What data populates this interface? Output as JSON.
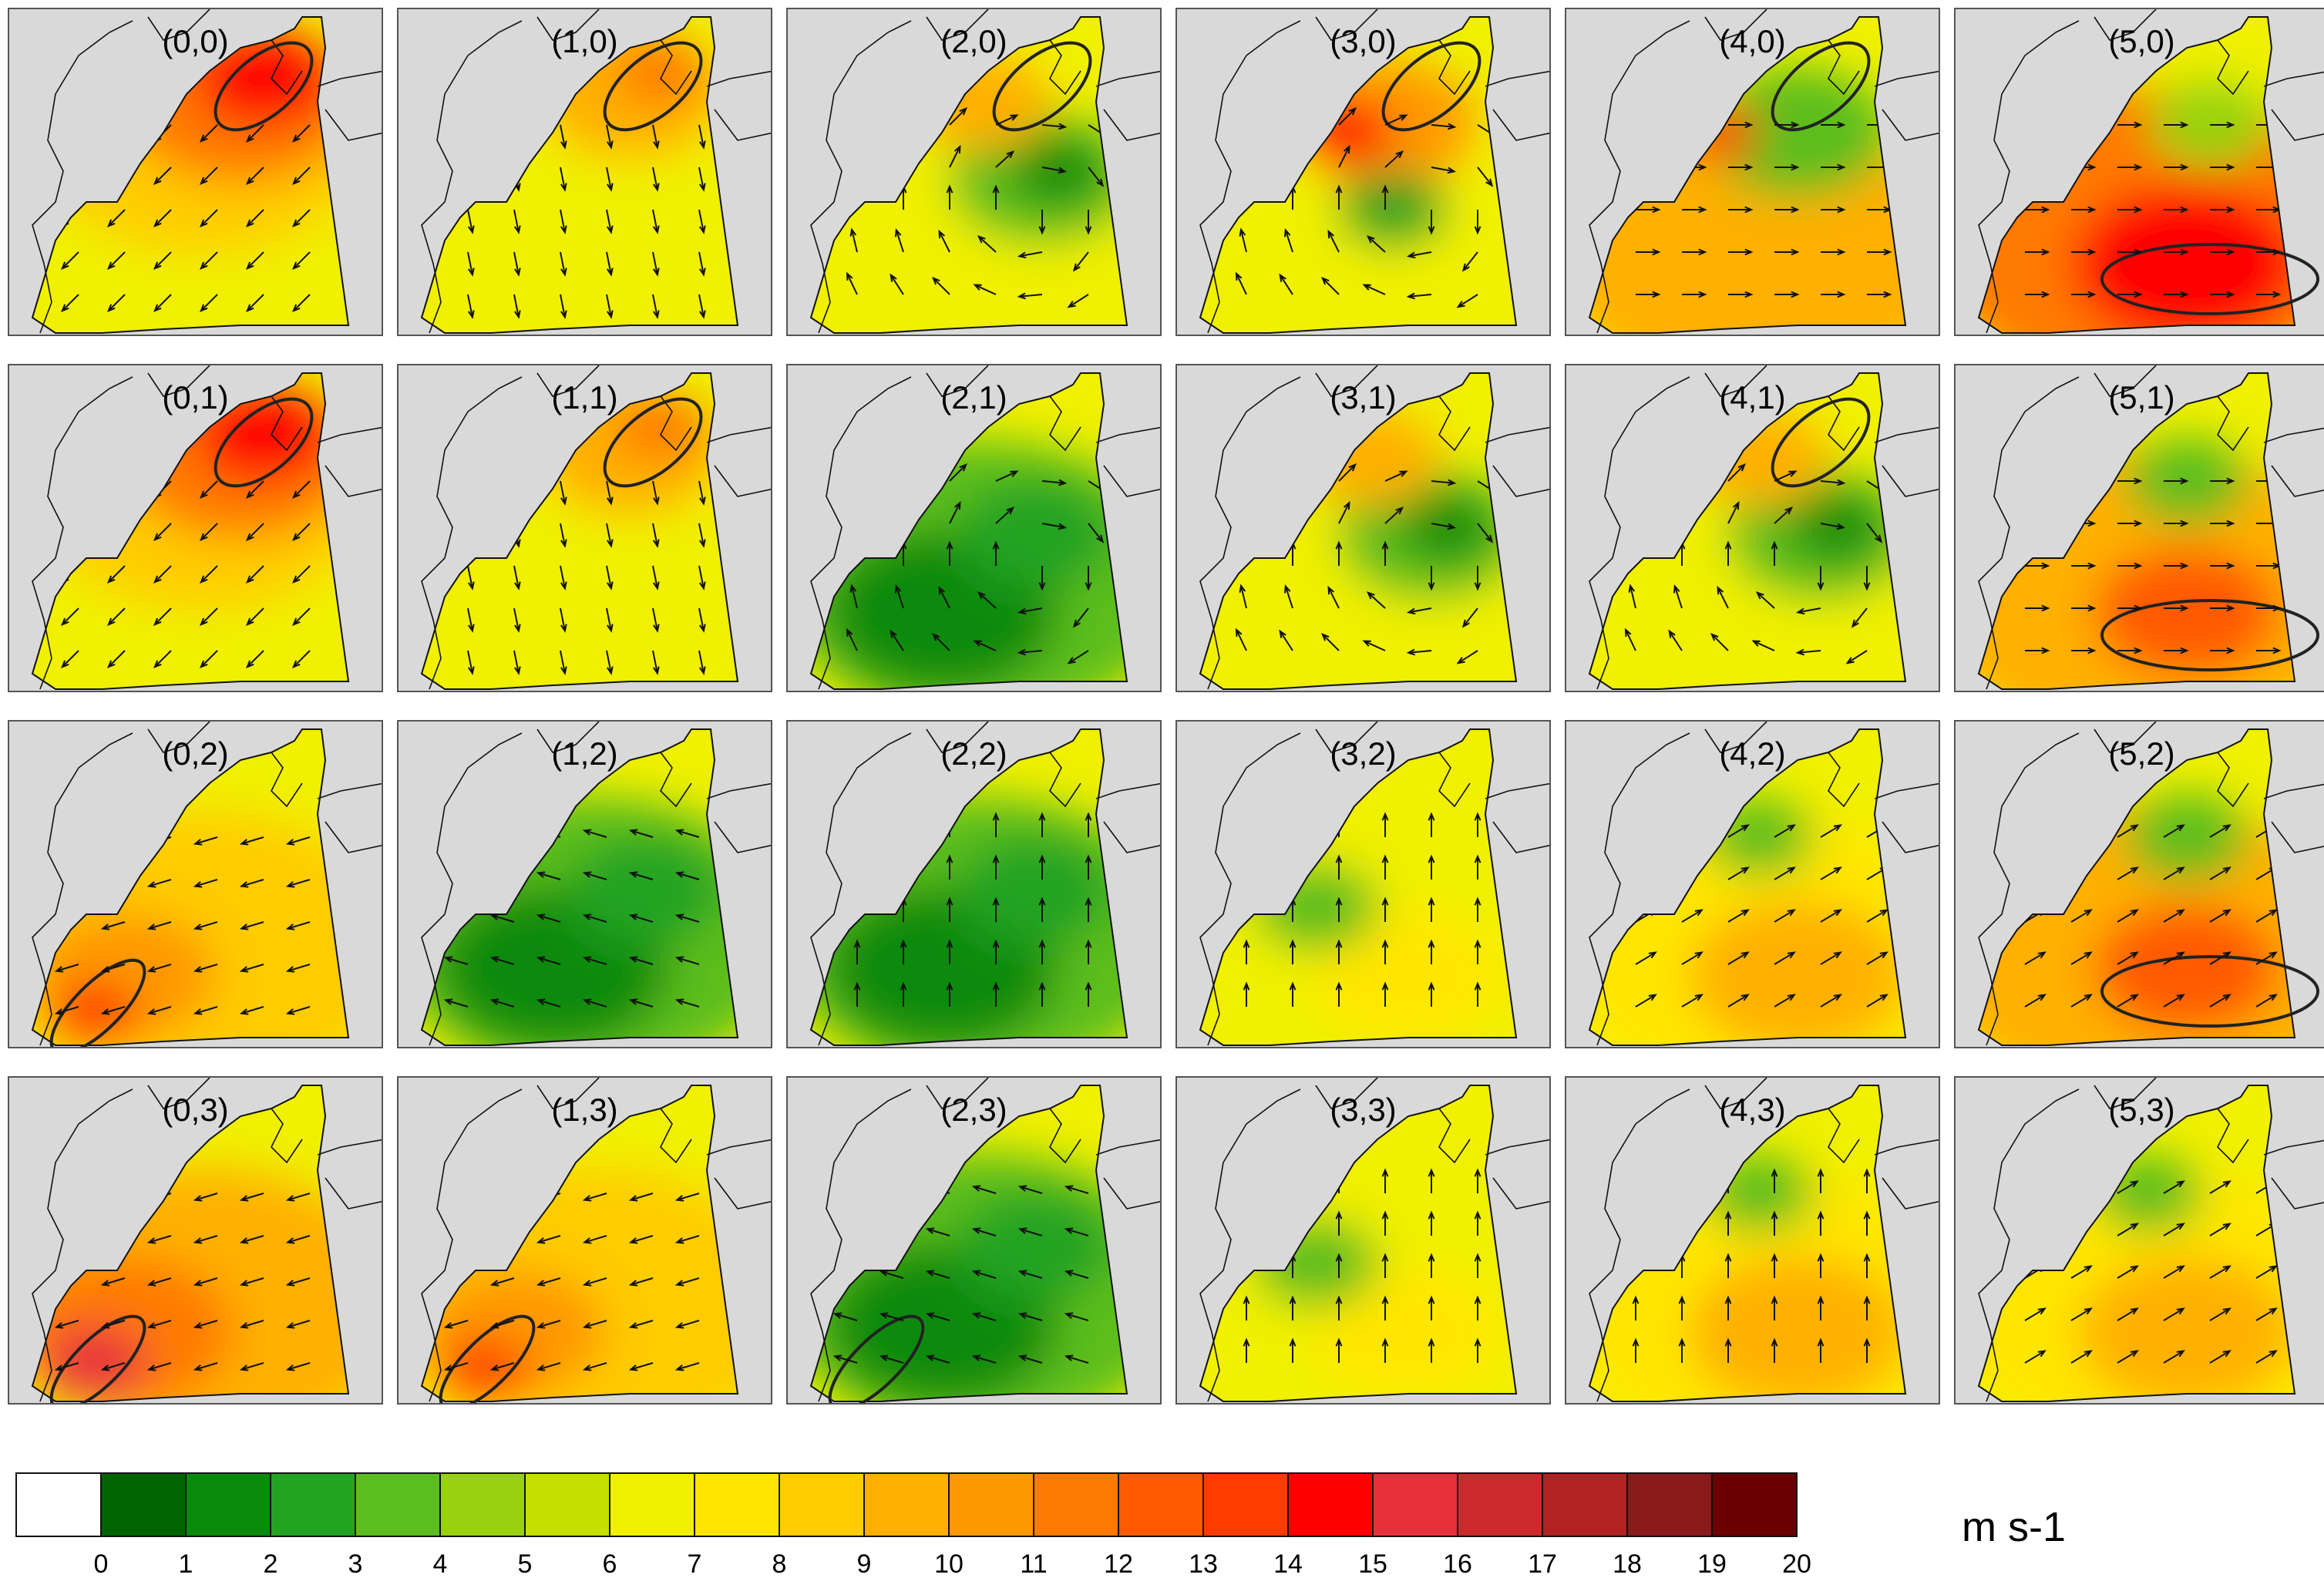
{
  "panels": [
    {
      "label": "(0,0)",
      "zone": "ne",
      "pattern": "hot_ne",
      "arrows": "sw"
    },
    {
      "label": "(1,0)",
      "zone": "ne",
      "pattern": "warm_ne",
      "arrows": "s"
    },
    {
      "label": "(2,0)",
      "zone": "ne",
      "pattern": "mixed",
      "arrows": "cyclone"
    },
    {
      "label": "(3,0)",
      "zone": "ne",
      "pattern": "hot_coast",
      "arrows": "cyclone"
    },
    {
      "label": "(4,0)",
      "zone": "ne",
      "pattern": "hot_coast_s",
      "arrows": "e"
    },
    {
      "label": "(5,0)",
      "zone": "center",
      "pattern": "hot_center",
      "arrows": "e"
    },
    {
      "label": "(0,1)",
      "zone": "ne",
      "pattern": "hot_ne",
      "arrows": "sw"
    },
    {
      "label": "(1,1)",
      "zone": "ne",
      "pattern": "warm_ne",
      "arrows": "s"
    },
    {
      "label": "(2,1)",
      "zone": "",
      "pattern": "green",
      "arrows": "cyclone"
    },
    {
      "label": "(3,1)",
      "zone": "",
      "pattern": "mixed",
      "arrows": "cyclone"
    },
    {
      "label": "(4,1)",
      "zone": "ne",
      "pattern": "mixed",
      "arrows": "cyclone"
    },
    {
      "label": "(5,1)",
      "zone": "center",
      "pattern": "warm_center",
      "arrows": "e"
    },
    {
      "label": "(0,2)",
      "zone": "sw",
      "pattern": "warm_sw",
      "arrows": "w"
    },
    {
      "label": "(1,2)",
      "zone": "",
      "pattern": "green",
      "arrows": "nw"
    },
    {
      "label": "(2,2)",
      "zone": "",
      "pattern": "green",
      "arrows": "n"
    },
    {
      "label": "(3,2)",
      "zone": "",
      "pattern": "yellow",
      "arrows": "n"
    },
    {
      "label": "(4,2)",
      "zone": "",
      "pattern": "warm",
      "arrows": "ne"
    },
    {
      "label": "(5,2)",
      "zone": "center",
      "pattern": "warm_center",
      "arrows": "ne"
    },
    {
      "label": "(0,3)",
      "zone": "sw",
      "pattern": "hot_sw",
      "arrows": "w"
    },
    {
      "label": "(1,3)",
      "zone": "sw",
      "pattern": "warm_sw",
      "arrows": "w"
    },
    {
      "label": "(2,3)",
      "zone": "sw",
      "pattern": "green",
      "arrows": "nw"
    },
    {
      "label": "(3,3)",
      "zone": "",
      "pattern": "yellow",
      "arrows": "n"
    },
    {
      "label": "(4,3)",
      "zone": "",
      "pattern": "warm",
      "arrows": "n"
    },
    {
      "label": "(5,3)",
      "zone": "",
      "pattern": "warm",
      "arrows": "ne"
    }
  ],
  "colorbar": {
    "colors": [
      "#ffffff",
      "#006400",
      "#0a8a0a",
      "#22a322",
      "#5cbd1e",
      "#98d20e",
      "#c5e000",
      "#f0f000",
      "#ffe600",
      "#ffcc00",
      "#ffb000",
      "#ff9900",
      "#ff7a00",
      "#ff5a00",
      "#ff3c00",
      "#ff0000",
      "#e8303a",
      "#cc2a2a",
      "#b22222",
      "#8b1a1a",
      "#6b0000"
    ],
    "ticks": [
      "0",
      "1",
      "2",
      "3",
      "4",
      "5",
      "6",
      "7",
      "8",
      "9",
      "10",
      "11",
      "12",
      "13",
      "14",
      "15",
      "16",
      "17",
      "18",
      "19",
      "20"
    ]
  },
  "units": "m s-1"
}
